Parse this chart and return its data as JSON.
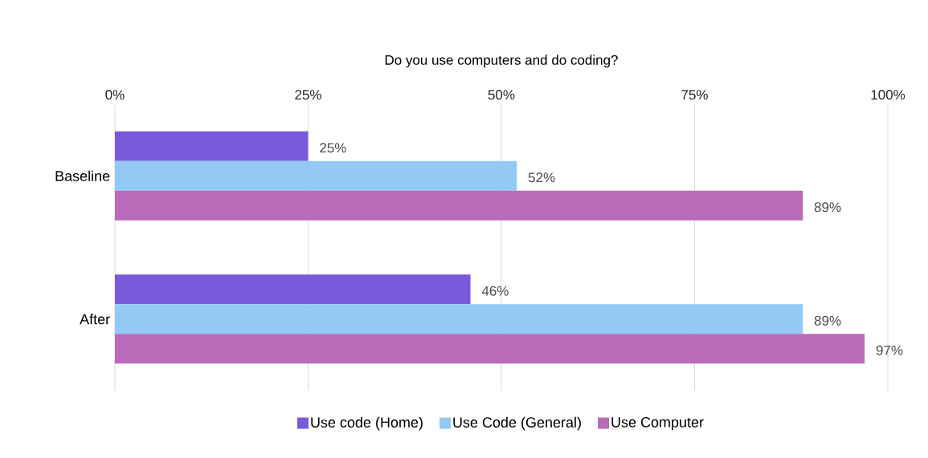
{
  "chart_data": {
    "type": "bar",
    "orientation": "horizontal",
    "title": "Do you use computers and do coding?",
    "categories": [
      "Baseline",
      "After"
    ],
    "series": [
      {
        "name": "Use code (Home)",
        "color": "#785ADB",
        "values": [
          25,
          46
        ],
        "value_labels": [
          "25%",
          "46%"
        ]
      },
      {
        "name": "Use Code (General)",
        "color": "#92CAF5",
        "values": [
          52,
          89
        ],
        "value_labels": [
          "52%",
          "89%"
        ]
      },
      {
        "name": "Use Computer",
        "color": "#B96AB8",
        "values": [
          89,
          97
        ],
        "value_labels": [
          "89%",
          "97%"
        ]
      }
    ],
    "xlim": [
      0,
      100
    ],
    "xticks": [
      {
        "value": 0,
        "label": "0%"
      },
      {
        "value": 25,
        "label": "25%"
      },
      {
        "value": 50,
        "label": "50%"
      },
      {
        "value": 75,
        "label": "75%"
      },
      {
        "value": 100,
        "label": "100%"
      }
    ],
    "grid": "x",
    "legend": "bottom"
  }
}
